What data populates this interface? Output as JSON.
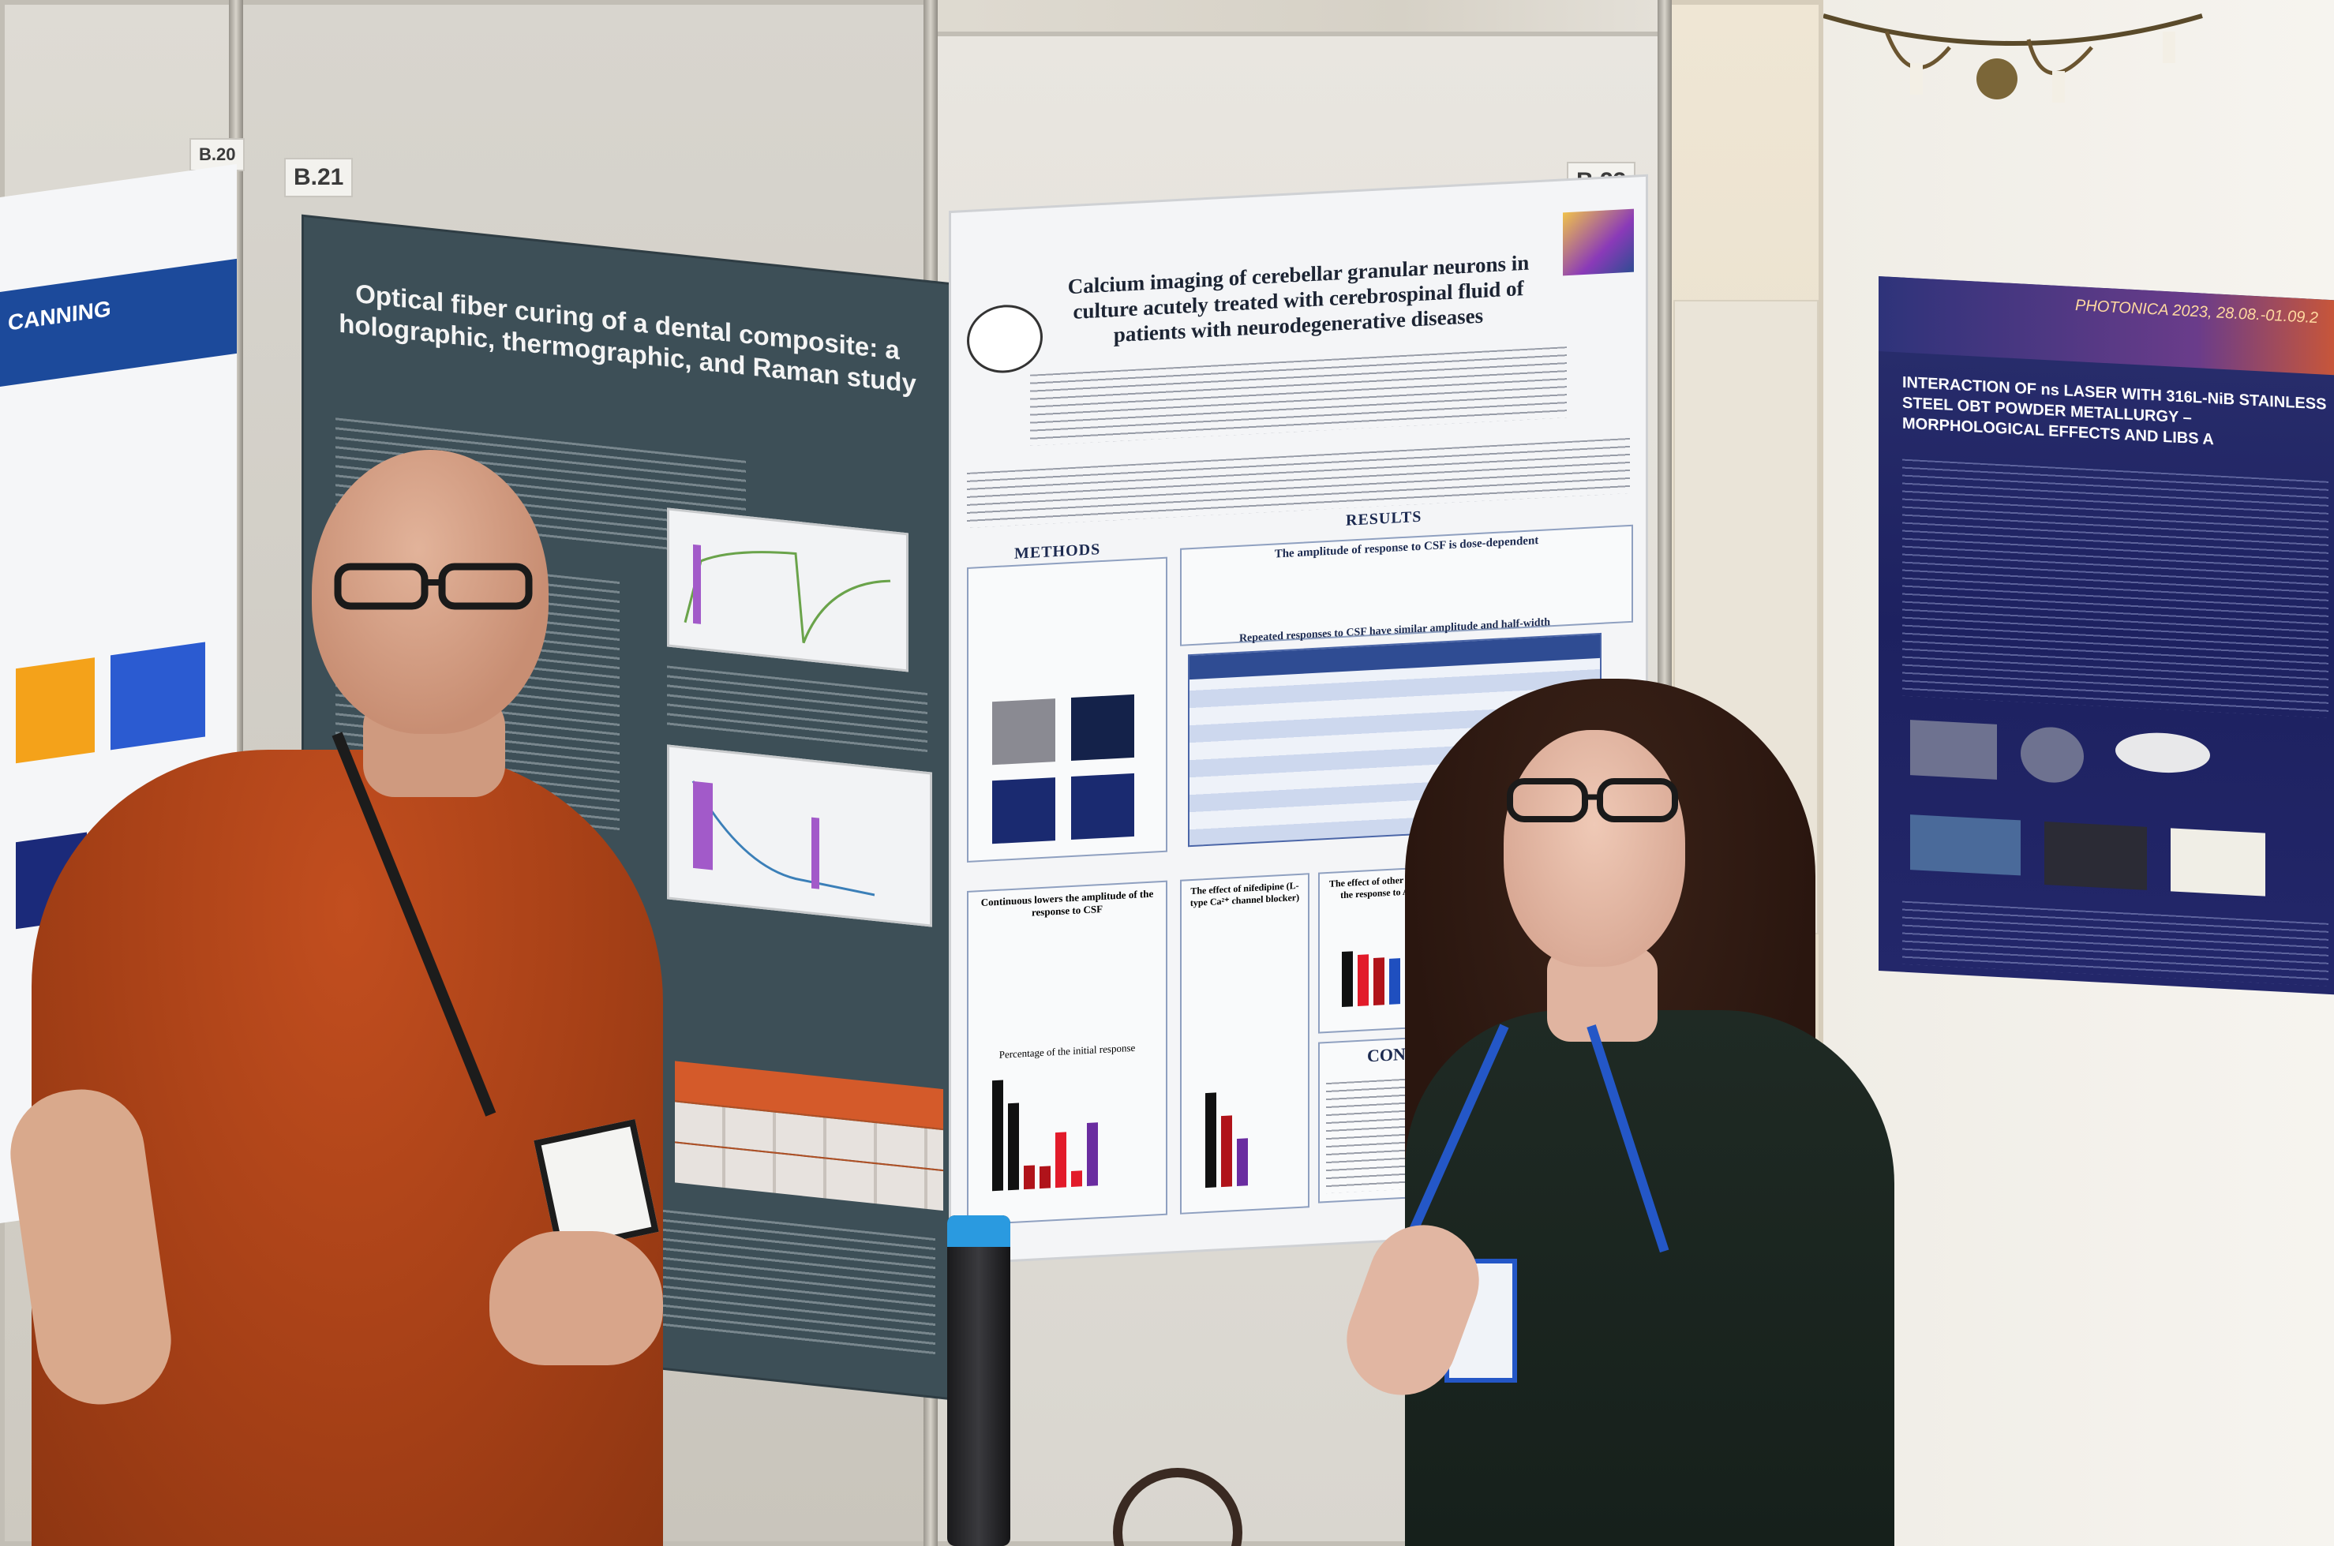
{
  "booths": {
    "left_label": "B.21",
    "middle_label": "B.23",
    "far_left_label": "B.20"
  },
  "poster_left": {
    "title": "Optical fiber curing of a dental composite: a holographic, thermographic, and Raman study"
  },
  "poster_middle": {
    "title": "Calcium imaging of cerebellar granular neurons in culture acutely treated with cerebrospinal fluid of patients with neurodegenerative diseases",
    "methods_heading": "METHODS",
    "results_heading": "RESULTS",
    "results_box_title": "The amplitude of response to CSF is dose-dependent",
    "table_title": "Repeated responses to CSF have similar amplitude and half-width",
    "box_percentage": "Percentage of the initial response",
    "box_blockers": "The effect of other blockers on the response to ALS CSF",
    "box_continuous": "Continuous lowers the amplitude of the response to CSF",
    "box_nifedipine": "The effect of nifedipine (L-type Ca²⁺ channel blocker)",
    "conclusion_heading": "CON",
    "bar_colors": [
      "#111111",
      "#b0131a",
      "#e21b2a",
      "#6a2ca0",
      "#1f4fbf",
      "#e0b400"
    ]
  },
  "poster_right": {
    "conference": "PHOTONICA 2023, 28.08.-01.09.2",
    "title": "INTERACTION OF ns LASER WITH 316L-NiB STAINLESS STEEL OBT POWDER METALLURGY – MORPHOLOGICAL EFFECTS AND LIBS A"
  },
  "poster_far_left": {
    "band_text": "CANNING"
  }
}
